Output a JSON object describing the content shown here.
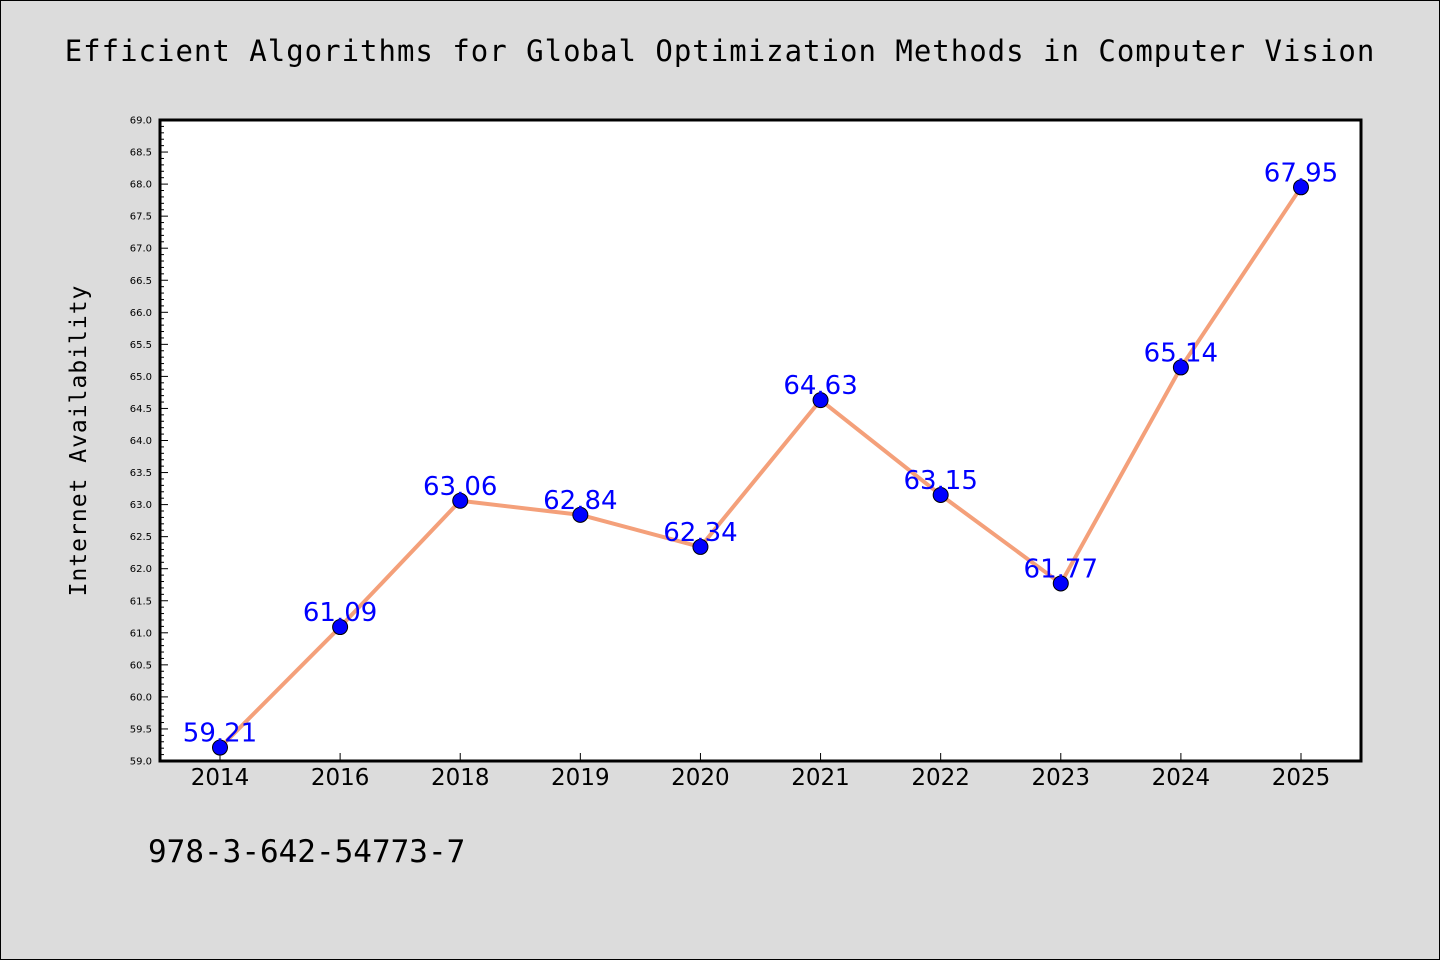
{
  "chart_data": {
    "type": "line",
    "title": "Efficient Algorithms for Global Optimization Methods in Computer Vision",
    "xlabel": "",
    "ylabel": "Internet Availability",
    "categories": [
      "2014",
      "2016",
      "2018",
      "2019",
      "2020",
      "2021",
      "2022",
      "2023",
      "2024",
      "2025"
    ],
    "series": [
      {
        "values": [
          59.21,
          61.09,
          63.06,
          62.84,
          62.34,
          64.63,
          63.15,
          61.77,
          65.14,
          67.95
        ]
      }
    ],
    "data_labels": [
      "59.21",
      "61.09",
      "63.06",
      "62.84",
      "62.34",
      "64.63",
      "63.15",
      "61.77",
      "65.14",
      "67.95"
    ],
    "ylim": [
      59.0,
      69.0
    ],
    "yticks": [
      "59.0",
      "59.5",
      "60.0",
      "60.5",
      "61.0",
      "61.5",
      "62.0",
      "62.5",
      "63.0",
      "63.5",
      "64.0",
      "64.5",
      "65.0",
      "65.5",
      "66.0",
      "66.5",
      "67.0",
      "67.5",
      "68.0",
      "68.5",
      "69.0"
    ],
    "grid": false,
    "legend": "none",
    "colors": {
      "line": "#f4a07a",
      "marker": "#0000ff",
      "data_label": "#0000ff",
      "plot_background": "#ffffff",
      "page_background": "#dcdcdc"
    }
  },
  "footer": {
    "code": "978-3-642-54773-7"
  }
}
